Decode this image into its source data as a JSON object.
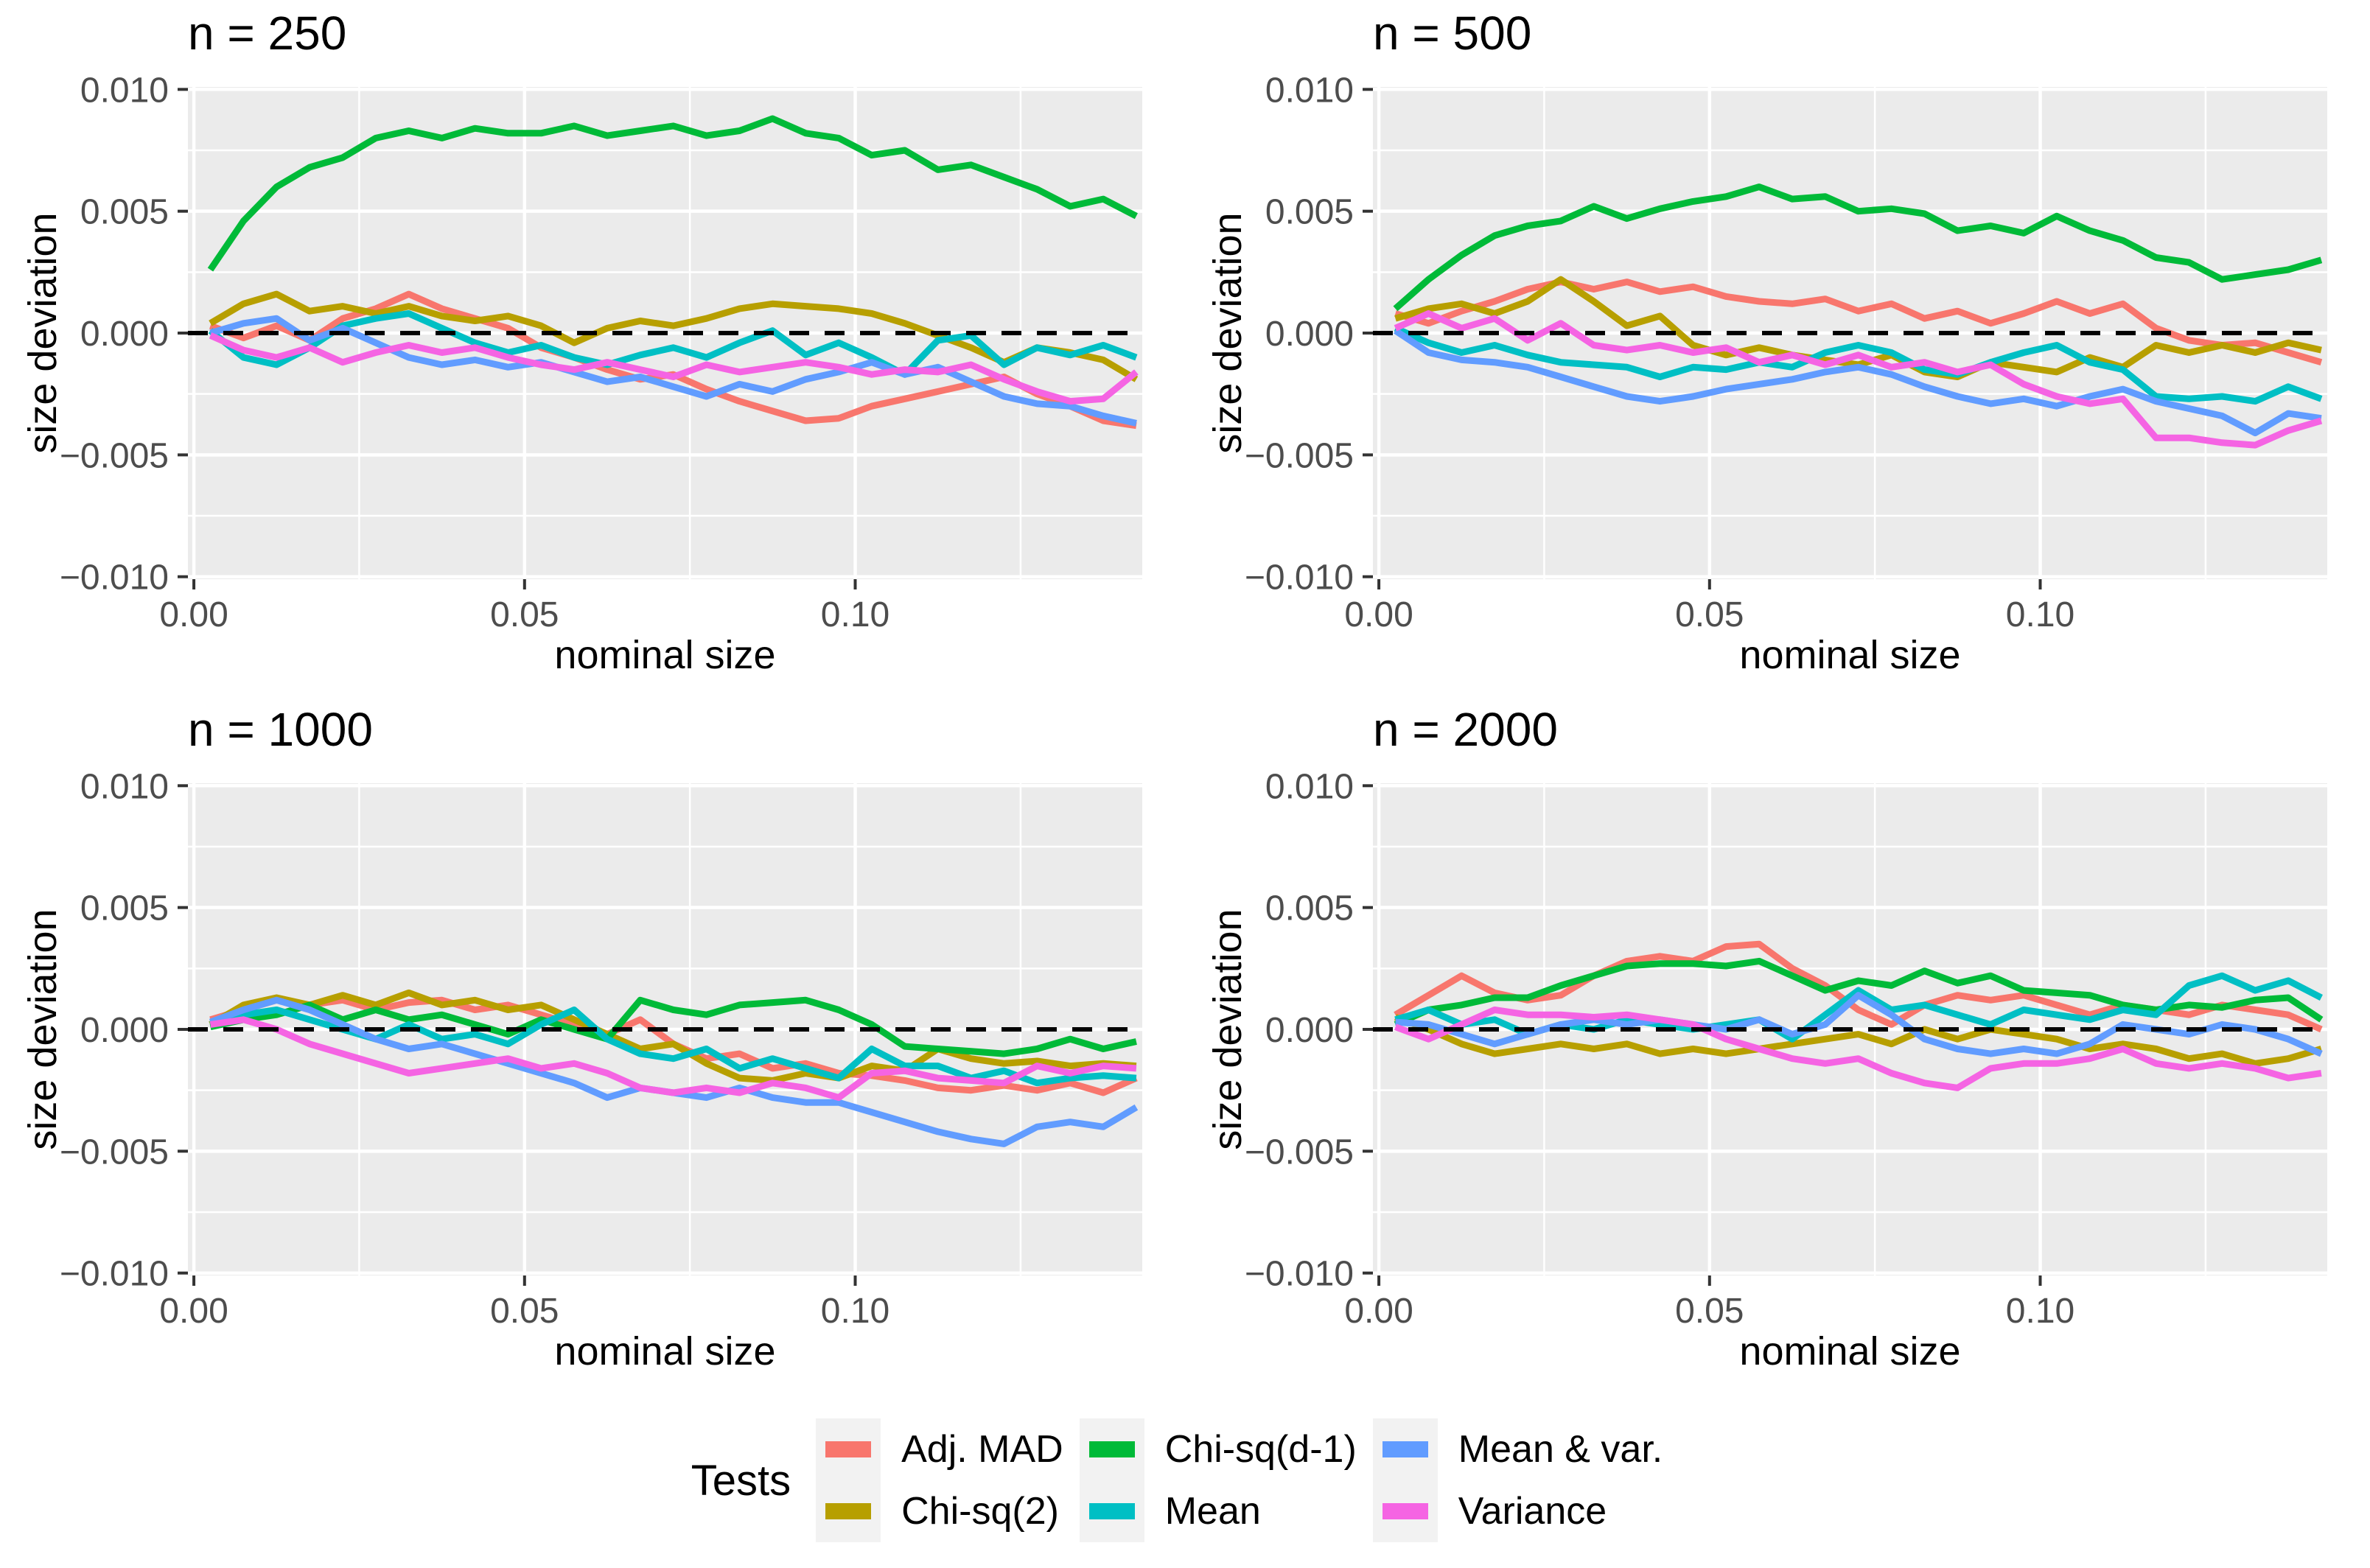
{
  "chart_data": {
    "type": "line",
    "x_label": "nominal size",
    "y_label": "size deviation",
    "legend_title": "Tests",
    "x_ticks": {
      "values": [
        0.0,
        0.05,
        0.1
      ],
      "labels": [
        "0.00",
        "0.05",
        "0.10"
      ]
    },
    "x_minor": [
      0.025,
      0.075,
      0.125
    ],
    "y_ticks": {
      "values": [
        0.01,
        0.005,
        0.0,
        -0.005,
        -0.01
      ],
      "labels": [
        "0.010",
        "0.005",
        "0.000",
        "−0.005",
        "−0.010"
      ]
    },
    "y_minor": [
      0.0075,
      0.0025,
      -0.0025,
      -0.0075
    ],
    "xlim": [
      -0.0009,
      0.1434
    ],
    "ylim": [
      -0.0101,
      0.0101
    ],
    "reference_line_y": 0,
    "grid": true,
    "legend_position": "bottom",
    "style": {
      "panel_bg": "#ebebeb",
      "grid_color": "#ffffff",
      "tick_color": "#333333",
      "tick_label_color": "#4d4d4d",
      "zero_line_color": "#000000"
    },
    "series_meta": [
      {
        "id": "adj_mad",
        "label": "Adj. MAD",
        "color": "#F8766D"
      },
      {
        "id": "chi_sq_2",
        "label": "Chi-sq(2)",
        "color": "#B79F00"
      },
      {
        "id": "chi_sq_d1",
        "label": "Chi-sq(d-1)",
        "color": "#00BA38"
      },
      {
        "id": "mean",
        "label": "Mean",
        "color": "#00BFC4"
      },
      {
        "id": "mean_var",
        "label": "Mean & var.",
        "color": "#619CFF"
      },
      {
        "id": "variance",
        "label": "Variance",
        "color": "#F564E3"
      }
    ],
    "x": [
      0.0025,
      0.0075,
      0.0125,
      0.0175,
      0.0225,
      0.0275,
      0.0325,
      0.0375,
      0.0425,
      0.0475,
      0.0525,
      0.0575,
      0.0625,
      0.0675,
      0.0725,
      0.0775,
      0.0825,
      0.0875,
      0.0925,
      0.0975,
      0.1025,
      0.1075,
      0.1125,
      0.1175,
      0.1225,
      0.1275,
      0.1325,
      0.1375,
      0.1425
    ],
    "panels": [
      {
        "title": "n = 250",
        "series": {
          "adj_mad": [
            0.0003,
            -0.0002,
            0.0003,
            -0.0003,
            0.0006,
            0.001,
            0.0016,
            0.001,
            0.0006,
            0.0002,
            -0.0006,
            -0.001,
            -0.0015,
            -0.0019,
            -0.0017,
            -0.0023,
            -0.0028,
            -0.0032,
            -0.0036,
            -0.0035,
            -0.003,
            -0.0027,
            -0.0024,
            -0.0021,
            -0.0018,
            -0.0025,
            -0.003,
            -0.0036,
            -0.0038
          ],
          "chi_sq_2": [
            0.0004,
            0.0012,
            0.0016,
            0.0009,
            0.0011,
            0.0008,
            0.0011,
            0.0007,
            0.0005,
            0.0007,
            0.0003,
            -0.0004,
            0.0002,
            0.0005,
            0.0003,
            0.0006,
            0.001,
            0.0012,
            0.0011,
            0.001,
            0.0008,
            0.0004,
            -0.0001,
            -0.0006,
            -0.0012,
            -0.0006,
            -0.0008,
            -0.0011,
            -0.0019
          ],
          "chi_sq_d1": [
            0.0026,
            0.0046,
            0.006,
            0.0068,
            0.0072,
            0.008,
            0.0083,
            0.008,
            0.0084,
            0.0082,
            0.0082,
            0.0085,
            0.0081,
            0.0083,
            0.0085,
            0.0081,
            0.0083,
            0.0088,
            0.0082,
            0.008,
            0.0073,
            0.0075,
            0.0067,
            0.0069,
            0.0064,
            0.0059,
            0.0052,
            0.0055,
            0.0048
          ],
          "mean": [
            0.0001,
            -0.001,
            -0.0013,
            -0.0006,
            0.0003,
            0.0006,
            0.0008,
            0.0002,
            -0.0004,
            -0.0008,
            -0.0005,
            -0.001,
            -0.0013,
            -0.0009,
            -0.0006,
            -0.001,
            -0.0004,
            0.0001,
            -0.0009,
            -0.0004,
            -0.001,
            -0.0017,
            -0.0003,
            -0.0001,
            -0.0013,
            -0.0006,
            -0.0009,
            -0.0005,
            -0.001
          ],
          "mean_var": [
            0.0,
            0.0004,
            0.0006,
            -0.0003,
            0.0002,
            -0.0004,
            -0.001,
            -0.0013,
            -0.0011,
            -0.0014,
            -0.0012,
            -0.0016,
            -0.002,
            -0.0018,
            -0.0022,
            -0.0026,
            -0.0021,
            -0.0024,
            -0.0019,
            -0.0016,
            -0.0012,
            -0.0017,
            -0.0014,
            -0.002,
            -0.0026,
            -0.0029,
            -0.003,
            -0.0034,
            -0.0037
          ],
          "variance": [
            -0.0001,
            -0.0007,
            -0.001,
            -0.0006,
            -0.0012,
            -0.0008,
            -0.0005,
            -0.0008,
            -0.0006,
            -0.001,
            -0.0013,
            -0.0015,
            -0.0012,
            -0.0015,
            -0.0018,
            -0.0013,
            -0.0016,
            -0.0014,
            -0.0012,
            -0.0014,
            -0.0017,
            -0.0015,
            -0.0016,
            -0.0013,
            -0.0019,
            -0.0024,
            -0.0028,
            -0.0027,
            -0.0016
          ]
        }
      },
      {
        "title": "n = 500",
        "series": {
          "adj_mad": [
            0.0008,
            0.0004,
            0.0009,
            0.0013,
            0.0018,
            0.0021,
            0.0018,
            0.0021,
            0.0017,
            0.0019,
            0.0015,
            0.0013,
            0.0012,
            0.0014,
            0.0009,
            0.0012,
            0.0006,
            0.0009,
            0.0004,
            0.0008,
            0.0013,
            0.0008,
            0.0012,
            0.0002,
            -0.0003,
            -0.0005,
            -0.0004,
            -0.0008,
            -0.0012
          ],
          "chi_sq_2": [
            0.0006,
            0.001,
            0.0012,
            0.0008,
            0.0013,
            0.0022,
            0.0013,
            0.0003,
            0.0007,
            -0.0005,
            -0.0009,
            -0.0006,
            -0.0009,
            -0.0011,
            -0.0013,
            -0.0009,
            -0.0016,
            -0.0018,
            -0.0012,
            -0.0014,
            -0.0016,
            -0.001,
            -0.0014,
            -0.0005,
            -0.0008,
            -0.0005,
            -0.0008,
            -0.0004,
            -0.0007
          ],
          "chi_sq_d1": [
            0.001,
            0.0022,
            0.0032,
            0.004,
            0.0044,
            0.0046,
            0.0052,
            0.0047,
            0.0051,
            0.0054,
            0.0056,
            0.006,
            0.0055,
            0.0056,
            0.005,
            0.0051,
            0.0049,
            0.0042,
            0.0044,
            0.0041,
            0.0048,
            0.0042,
            0.0038,
            0.0031,
            0.0029,
            0.0022,
            0.0024,
            0.0026,
            0.003
          ],
          "mean": [
            0.0002,
            -0.0004,
            -0.0008,
            -0.0005,
            -0.0009,
            -0.0012,
            -0.0013,
            -0.0014,
            -0.0018,
            -0.0014,
            -0.0015,
            -0.0012,
            -0.0014,
            -0.0008,
            -0.0005,
            -0.0008,
            -0.0015,
            -0.0017,
            -0.0012,
            -0.0008,
            -0.0005,
            -0.0012,
            -0.0015,
            -0.0026,
            -0.0027,
            -0.0026,
            -0.0028,
            -0.0022,
            -0.0027
          ],
          "mean_var": [
            0.0001,
            -0.0008,
            -0.0011,
            -0.0012,
            -0.0014,
            -0.0018,
            -0.0022,
            -0.0026,
            -0.0028,
            -0.0026,
            -0.0023,
            -0.0021,
            -0.0019,
            -0.0016,
            -0.0014,
            -0.0017,
            -0.0022,
            -0.0026,
            -0.0029,
            -0.0027,
            -0.003,
            -0.0026,
            -0.0023,
            -0.0028,
            -0.0031,
            -0.0034,
            -0.0041,
            -0.0033,
            -0.0035
          ],
          "variance": [
            0.0002,
            0.0008,
            0.0002,
            0.0006,
            -0.0003,
            0.0004,
            -0.0005,
            -0.0007,
            -0.0005,
            -0.0008,
            -0.0006,
            -0.0012,
            -0.0009,
            -0.0013,
            -0.0009,
            -0.0014,
            -0.0012,
            -0.0016,
            -0.0013,
            -0.0021,
            -0.0026,
            -0.0029,
            -0.0027,
            -0.0043,
            -0.0043,
            -0.0045,
            -0.0046,
            -0.004,
            -0.0036
          ]
        }
      },
      {
        "title": "n = 1000",
        "series": {
          "adj_mad": [
            0.0004,
            0.0008,
            0.0012,
            0.001,
            0.0012,
            0.0008,
            0.0011,
            0.0012,
            0.0008,
            0.001,
            0.0006,
            0.0002,
            -0.0002,
            0.0004,
            -0.0006,
            -0.0012,
            -0.001,
            -0.0016,
            -0.0014,
            -0.0018,
            -0.0019,
            -0.0021,
            -0.0024,
            -0.0025,
            -0.0023,
            -0.0025,
            -0.0022,
            -0.0026,
            -0.002
          ],
          "chi_sq_2": [
            0.0002,
            0.001,
            0.0013,
            0.001,
            0.0014,
            0.001,
            0.0015,
            0.001,
            0.0012,
            0.0008,
            0.001,
            0.0004,
            -0.0002,
            -0.0008,
            -0.0006,
            -0.0014,
            -0.002,
            -0.0021,
            -0.0018,
            -0.002,
            -0.0015,
            -0.0017,
            -0.0008,
            -0.0012,
            -0.0014,
            -0.0013,
            -0.0015,
            -0.0014,
            -0.0015
          ],
          "chi_sq_d1": [
            0.0001,
            0.0004,
            0.0006,
            0.001,
            0.0004,
            0.0008,
            0.0004,
            0.0006,
            0.0002,
            -0.0002,
            0.0004,
            0.0,
            -0.0004,
            0.0012,
            0.0008,
            0.0006,
            0.001,
            0.0011,
            0.0012,
            0.0008,
            0.0002,
            -0.0007,
            -0.0008,
            -0.0009,
            -0.001,
            -0.0008,
            -0.0004,
            -0.0008,
            -0.0005
          ],
          "mean": [
            0.0002,
            0.0006,
            0.0008,
            0.0004,
            0.0,
            -0.0004,
            0.0002,
            -0.0004,
            -0.0002,
            -0.0006,
            0.0002,
            0.0008,
            -0.0004,
            -0.001,
            -0.0012,
            -0.0008,
            -0.0016,
            -0.0012,
            -0.0016,
            -0.002,
            -0.0008,
            -0.0015,
            -0.0015,
            -0.002,
            -0.0017,
            -0.0022,
            -0.002,
            -0.0019,
            -0.002
          ],
          "mean_var": [
            0.0003,
            0.0008,
            0.0012,
            0.0008,
            0.0002,
            -0.0004,
            -0.0008,
            -0.0006,
            -0.001,
            -0.0014,
            -0.0018,
            -0.0022,
            -0.0028,
            -0.0024,
            -0.0026,
            -0.0028,
            -0.0024,
            -0.0028,
            -0.003,
            -0.003,
            -0.0034,
            -0.0038,
            -0.0042,
            -0.0045,
            -0.0047,
            -0.004,
            -0.0038,
            -0.004,
            -0.0032
          ],
          "variance": [
            0.0002,
            0.0004,
            0.0,
            -0.0006,
            -0.001,
            -0.0014,
            -0.0018,
            -0.0016,
            -0.0014,
            -0.0012,
            -0.0016,
            -0.0014,
            -0.0018,
            -0.0024,
            -0.0026,
            -0.0024,
            -0.0026,
            -0.0022,
            -0.0024,
            -0.0028,
            -0.0018,
            -0.0017,
            -0.002,
            -0.0021,
            -0.0022,
            -0.0015,
            -0.0018,
            -0.0015,
            -0.0016
          ]
        }
      },
      {
        "title": "n = 2000",
        "series": {
          "adj_mad": [
            0.0006,
            0.0014,
            0.0022,
            0.0015,
            0.0012,
            0.0014,
            0.0022,
            0.0028,
            0.003,
            0.0028,
            0.0034,
            0.0035,
            0.0025,
            0.0018,
            0.0008,
            0.0002,
            0.001,
            0.0014,
            0.0012,
            0.0014,
            0.001,
            0.0006,
            0.001,
            0.0008,
            0.0006,
            0.001,
            0.0008,
            0.0006,
            0.0
          ],
          "chi_sq_2": [
            0.0005,
            0.0,
            -0.0006,
            -0.001,
            -0.0008,
            -0.0006,
            -0.0008,
            -0.0006,
            -0.001,
            -0.0008,
            -0.001,
            -0.0008,
            -0.0006,
            -0.0004,
            -0.0002,
            -0.0006,
            0.0,
            -0.0004,
            0.0,
            -0.0002,
            -0.0004,
            -0.0008,
            -0.0006,
            -0.0008,
            -0.0012,
            -0.001,
            -0.0014,
            -0.0012,
            -0.0008
          ],
          "chi_sq_d1": [
            0.0002,
            0.0008,
            0.001,
            0.0013,
            0.0013,
            0.0018,
            0.0022,
            0.0026,
            0.0027,
            0.0027,
            0.0026,
            0.0028,
            0.0022,
            0.0016,
            0.002,
            0.0018,
            0.0024,
            0.0019,
            0.0022,
            0.0016,
            0.0015,
            0.0014,
            0.001,
            0.0008,
            0.001,
            0.0009,
            0.0012,
            0.0013,
            0.0004
          ],
          "mean": [
            0.0004,
            0.0008,
            0.0002,
            0.0004,
            -0.0002,
            0.0002,
            0.0,
            0.0004,
            0.0002,
            0.0,
            0.0002,
            0.0004,
            -0.0004,
            0.0006,
            0.0016,
            0.0008,
            0.001,
            0.0006,
            0.0002,
            0.0008,
            0.0006,
            0.0004,
            0.0008,
            0.0006,
            0.0018,
            0.0022,
            0.0016,
            0.002,
            0.0013
          ],
          "mean_var": [
            0.0003,
            0.0002,
            -0.0002,
            -0.0006,
            -0.0002,
            0.0002,
            0.0004,
            0.0002,
            0.0004,
            0.0002,
            0.0,
            0.0004,
            -0.0002,
            0.0002,
            0.0014,
            0.0006,
            -0.0004,
            -0.0008,
            -0.001,
            -0.0008,
            -0.001,
            -0.0006,
            0.0002,
            0.0,
            -0.0002,
            0.0002,
            0.0,
            -0.0004,
            -0.001
          ],
          "variance": [
            0.0001,
            -0.0004,
            0.0002,
            0.0008,
            0.0006,
            0.0006,
            0.0005,
            0.0006,
            0.0004,
            0.0002,
            -0.0004,
            -0.0008,
            -0.0012,
            -0.0014,
            -0.0012,
            -0.0018,
            -0.0022,
            -0.0024,
            -0.0016,
            -0.0014,
            -0.0014,
            -0.0012,
            -0.0008,
            -0.0014,
            -0.0016,
            -0.0014,
            -0.0016,
            -0.002,
            -0.0018
          ]
        }
      }
    ]
  }
}
